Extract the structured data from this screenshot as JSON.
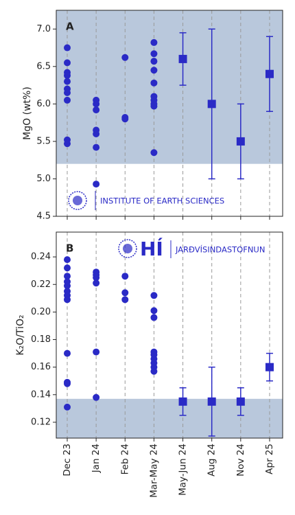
{
  "chart_data": [
    {
      "type": "scatter",
      "annotation": "A",
      "ylabel": "MgO (wt%)",
      "logo_text": "INSTITUTE OF EARTH SCIENCES",
      "ylim": [
        4.5,
        7.25
      ],
      "yticks": [
        4.5,
        {
          "value": 5,
          "label": "5.0"
        },
        5.5,
        {
          "value": 6,
          "label": "6.0"
        },
        6.5,
        {
          "value": 7,
          "label": "7.0"
        }
      ],
      "shaded_range": [
        5.2,
        7.25
      ],
      "shade_color": "#b9c8dc",
      "color": "#2a2ac6",
      "grid": true,
      "samples": [
        [
          6.75,
          6.55,
          6.42,
          6.38,
          6.3,
          6.2,
          6.15,
          6.05,
          5.52,
          5.47
        ],
        [
          6.05,
          6.0,
          5.92,
          5.65,
          5.6,
          5.42,
          4.93
        ],
        [
          6.62,
          5.82,
          5.8
        ],
        [
          6.82,
          6.67,
          6.57,
          6.45,
          6.28,
          6.1,
          6.05,
          6.0,
          5.97,
          5.35
        ],
        [],
        [],
        [],
        []
      ],
      "estimates": [
        null,
        null,
        null,
        null,
        6.6,
        6.0,
        5.5,
        6.4
      ],
      "errors": [
        null,
        null,
        null,
        null,
        0.35,
        1.0,
        0.5,
        0.5
      ]
    },
    {
      "type": "scatter",
      "annotation": "B",
      "ylabel": "K₂O/TiO₂",
      "logo_text": "JARÐVÍSINDASTOFNUN",
      "logo_mark": "HÍ",
      "categories": [
        "Dec 23",
        "Jan 24",
        "Feb 24",
        "Mar-May 24",
        "May-Jun 24",
        "Aug 24",
        "Nov 24",
        "Apr 25"
      ],
      "ylim": [
        0.1085,
        0.258
      ],
      "yticks": [
        0.12,
        0.14,
        0.16,
        0.18,
        {
          "value": 0.2,
          "label": "0.20"
        },
        0.22,
        0.24
      ],
      "shaded_range": [
        0.1085,
        0.137
      ],
      "shade_color": "#b9c8dc",
      "color": "#2a2ac6",
      "grid": true,
      "samples": [
        [
          0.238,
          0.232,
          0.226,
          0.222,
          0.219,
          0.215,
          0.212,
          0.209,
          0.17,
          0.149,
          0.148,
          0.131
        ],
        [
          0.229,
          0.227,
          0.225,
          0.221,
          0.171,
          0.138
        ],
        [
          0.226,
          0.214,
          0.209
        ],
        [
          0.212,
          0.201,
          0.196,
          0.171,
          0.169,
          0.166,
          0.163,
          0.16,
          0.157
        ],
        [],
        [],
        [],
        []
      ],
      "estimates": [
        null,
        null,
        null,
        null,
        0.135,
        0.135,
        0.135,
        0.16
      ],
      "errors": [
        null,
        null,
        null,
        null,
        0.01,
        0.025,
        0.01,
        0.01
      ]
    }
  ]
}
